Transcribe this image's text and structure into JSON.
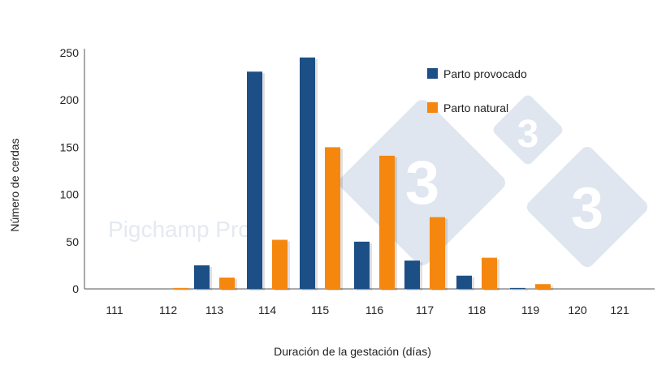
{
  "watermark": {
    "text": "Pigchamp Pro",
    "logo_digit": "3",
    "logo_color": "#dfe6f0"
  },
  "chart_data": {
    "type": "bar",
    "title": "",
    "xlabel": "Duración de la gestación (días)",
    "ylabel": "Número de cerdas",
    "categories": [
      "111",
      "112",
      "113",
      "114",
      "115",
      "116",
      "117",
      "118",
      "119",
      "120",
      "121"
    ],
    "series": [
      {
        "name": "Parto provocado",
        "color": "#1c4f86",
        "values": [
          0,
          0,
          25,
          230,
          245,
          50,
          30,
          14,
          1,
          0,
          0
        ]
      },
      {
        "name": "Parto natural",
        "color": "#f5870f",
        "values": [
          0,
          1,
          12,
          52,
          150,
          141,
          76,
          33,
          5,
          0,
          0
        ]
      }
    ],
    "ylim": [
      0,
      250
    ],
    "yticks": [
      "0",
      "50",
      "100",
      "150",
      "200",
      "250"
    ],
    "grid": false,
    "legend_position": "top-right"
  }
}
